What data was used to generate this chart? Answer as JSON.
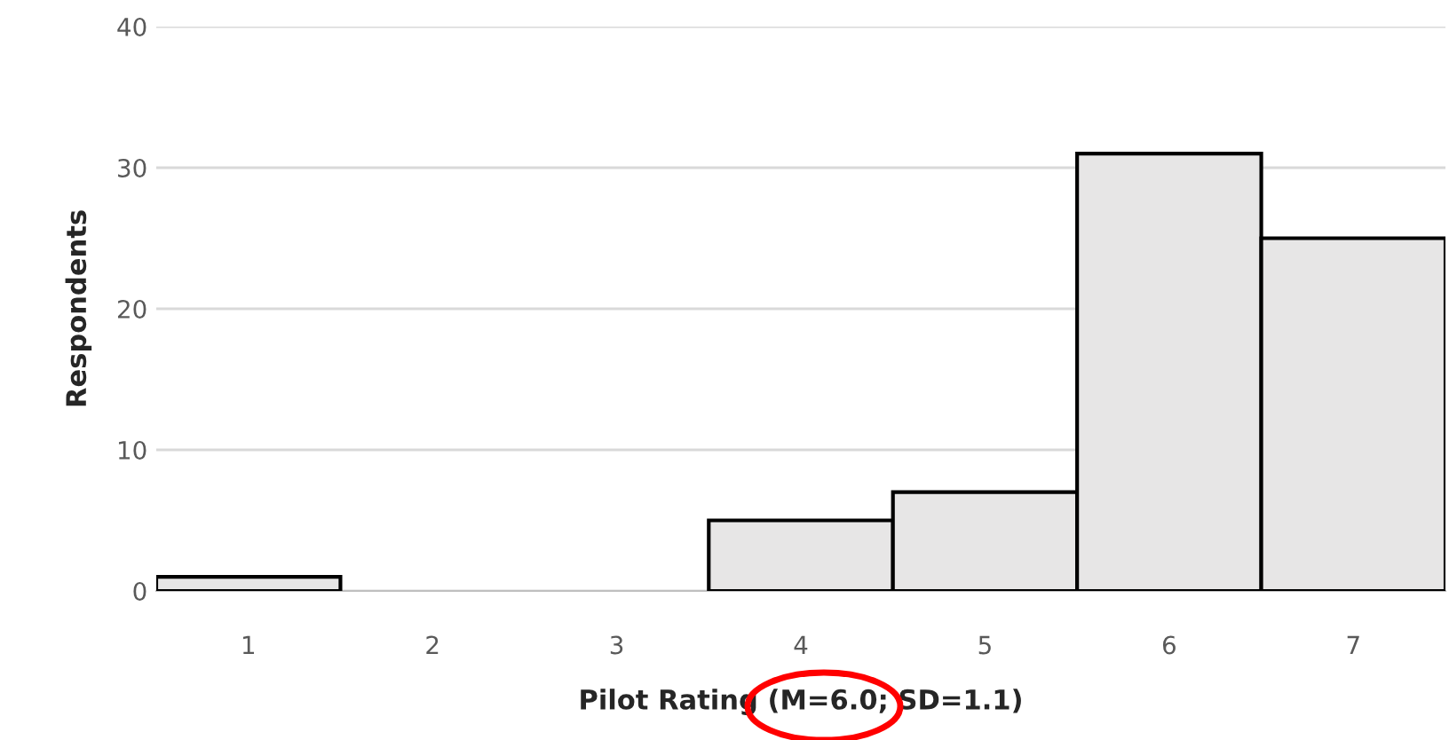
{
  "chart_data": {
    "type": "bar",
    "xlabel": "Pilot Rating (M=6.0; SD=1.1)",
    "ylabel": "Respondents",
    "categories": [
      "1",
      "2",
      "3",
      "4",
      "5",
      "6",
      "7"
    ],
    "values": [
      1,
      0,
      0,
      5,
      7,
      31,
      25
    ],
    "color": "#e7e6e6",
    "ylim": [
      0,
      40
    ],
    "yticks": [
      0,
      10,
      20,
      30,
      40
    ],
    "grid": "y"
  }
}
